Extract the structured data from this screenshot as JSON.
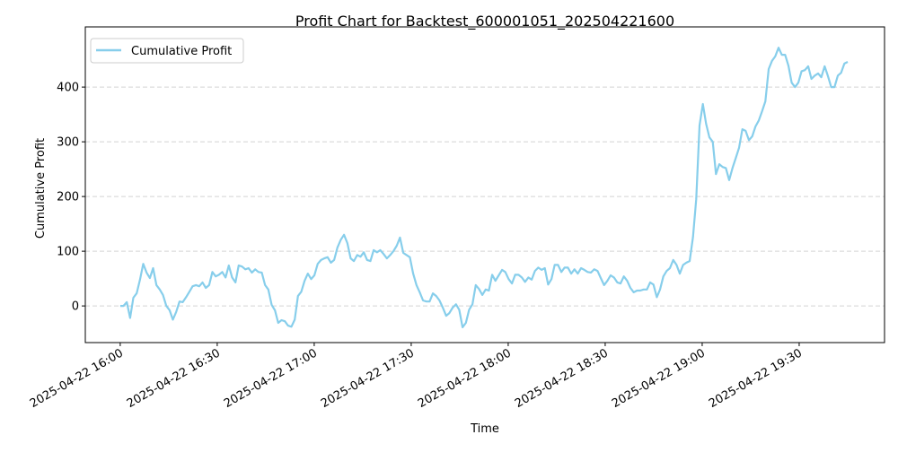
{
  "chart_data": {
    "type": "line",
    "title": "Profit Chart for Backtest_600001051_202504221600",
    "xlabel": "Time",
    "ylabel": "Cumulative Profit",
    "x_unit": "minutes since 2025-04-22 16:00",
    "x_start_minute": 0,
    "x_end_minute": 225,
    "xlim": [
      -10.8,
      236.4
    ],
    "ylim": [
      -67,
      510
    ],
    "grid": "y-dashed",
    "legend": {
      "position": "top-left",
      "entries": [
        "Cumulative Profit"
      ]
    },
    "line_color": "#87CEEB",
    "x_ticks": [
      {
        "minute": 0,
        "label": "2025-04-22 16:00"
      },
      {
        "minute": 30,
        "label": "2025-04-22 16:30"
      },
      {
        "minute": 60,
        "label": "2025-04-22 17:00"
      },
      {
        "minute": 90,
        "label": "2025-04-22 17:30"
      },
      {
        "minute": 120,
        "label": "2025-04-22 18:00"
      },
      {
        "minute": 150,
        "label": "2025-04-22 18:30"
      },
      {
        "minute": 180,
        "label": "2025-04-22 19:00"
      },
      {
        "minute": 210,
        "label": "2025-04-22 19:30"
      }
    ],
    "y_ticks": [
      {
        "value": 0,
        "label": "0"
      },
      {
        "value": 100,
        "label": "100"
      },
      {
        "value": 200,
        "label": "200"
      },
      {
        "value": 300,
        "label": "300"
      },
      {
        "value": 400,
        "label": "400"
      }
    ],
    "series": [
      {
        "name": "Cumulative Profit",
        "values": [
          0,
          0,
          7,
          -22,
          15,
          23,
          48,
          77,
          61,
          51,
          69,
          38,
          30,
          20,
          0,
          -8,
          -25,
          -11,
          8,
          7,
          16,
          26,
          36,
          38,
          36,
          43,
          33,
          38,
          62,
          54,
          57,
          62,
          52,
          74,
          52,
          43,
          74,
          72,
          67,
          69,
          61,
          67,
          62,
          61,
          38,
          30,
          2,
          -8,
          -31,
          -26,
          -28,
          -36,
          -38,
          -25,
          18,
          26,
          46,
          59,
          49,
          56,
          77,
          84,
          87,
          89,
          79,
          84,
          107,
          121,
          130,
          115,
          87,
          82,
          93,
          90,
          98,
          84,
          82,
          102,
          98,
          102,
          95,
          87,
          93,
          100,
          110,
          125,
          97,
          93,
          89,
          59,
          38,
          25,
          10,
          8,
          8,
          23,
          18,
          10,
          -3,
          -18,
          -13,
          -3,
          3,
          -7,
          -39,
          -31,
          -7,
          3,
          38,
          31,
          20,
          30,
          28,
          57,
          46,
          56,
          66,
          62,
          49,
          41,
          57,
          57,
          52,
          44,
          52,
          48,
          64,
          70,
          66,
          69,
          39,
          49,
          75,
          75,
          62,
          70,
          70,
          59,
          67,
          59,
          69,
          66,
          62,
          61,
          67,
          64,
          51,
          38,
          46,
          56,
          52,
          43,
          41,
          54,
          46,
          33,
          25,
          28,
          28,
          30,
          30,
          43,
          39,
          16,
          30,
          54,
          64,
          69,
          84,
          75,
          59,
          75,
          79,
          82,
          126,
          195,
          330,
          369,
          333,
          308,
          300,
          241,
          259,
          254,
          252,
          230,
          252,
          270,
          289,
          323,
          320,
          303,
          310,
          328,
          339,
          356,
          374,
          433,
          448,
          456,
          472,
          459,
          459,
          439,
          408,
          400,
          408,
          429,
          431,
          438,
          415,
          421,
          425,
          418,
          438,
          420,
          400,
          400,
          421,
          426,
          443,
          446
        ]
      }
    ]
  }
}
